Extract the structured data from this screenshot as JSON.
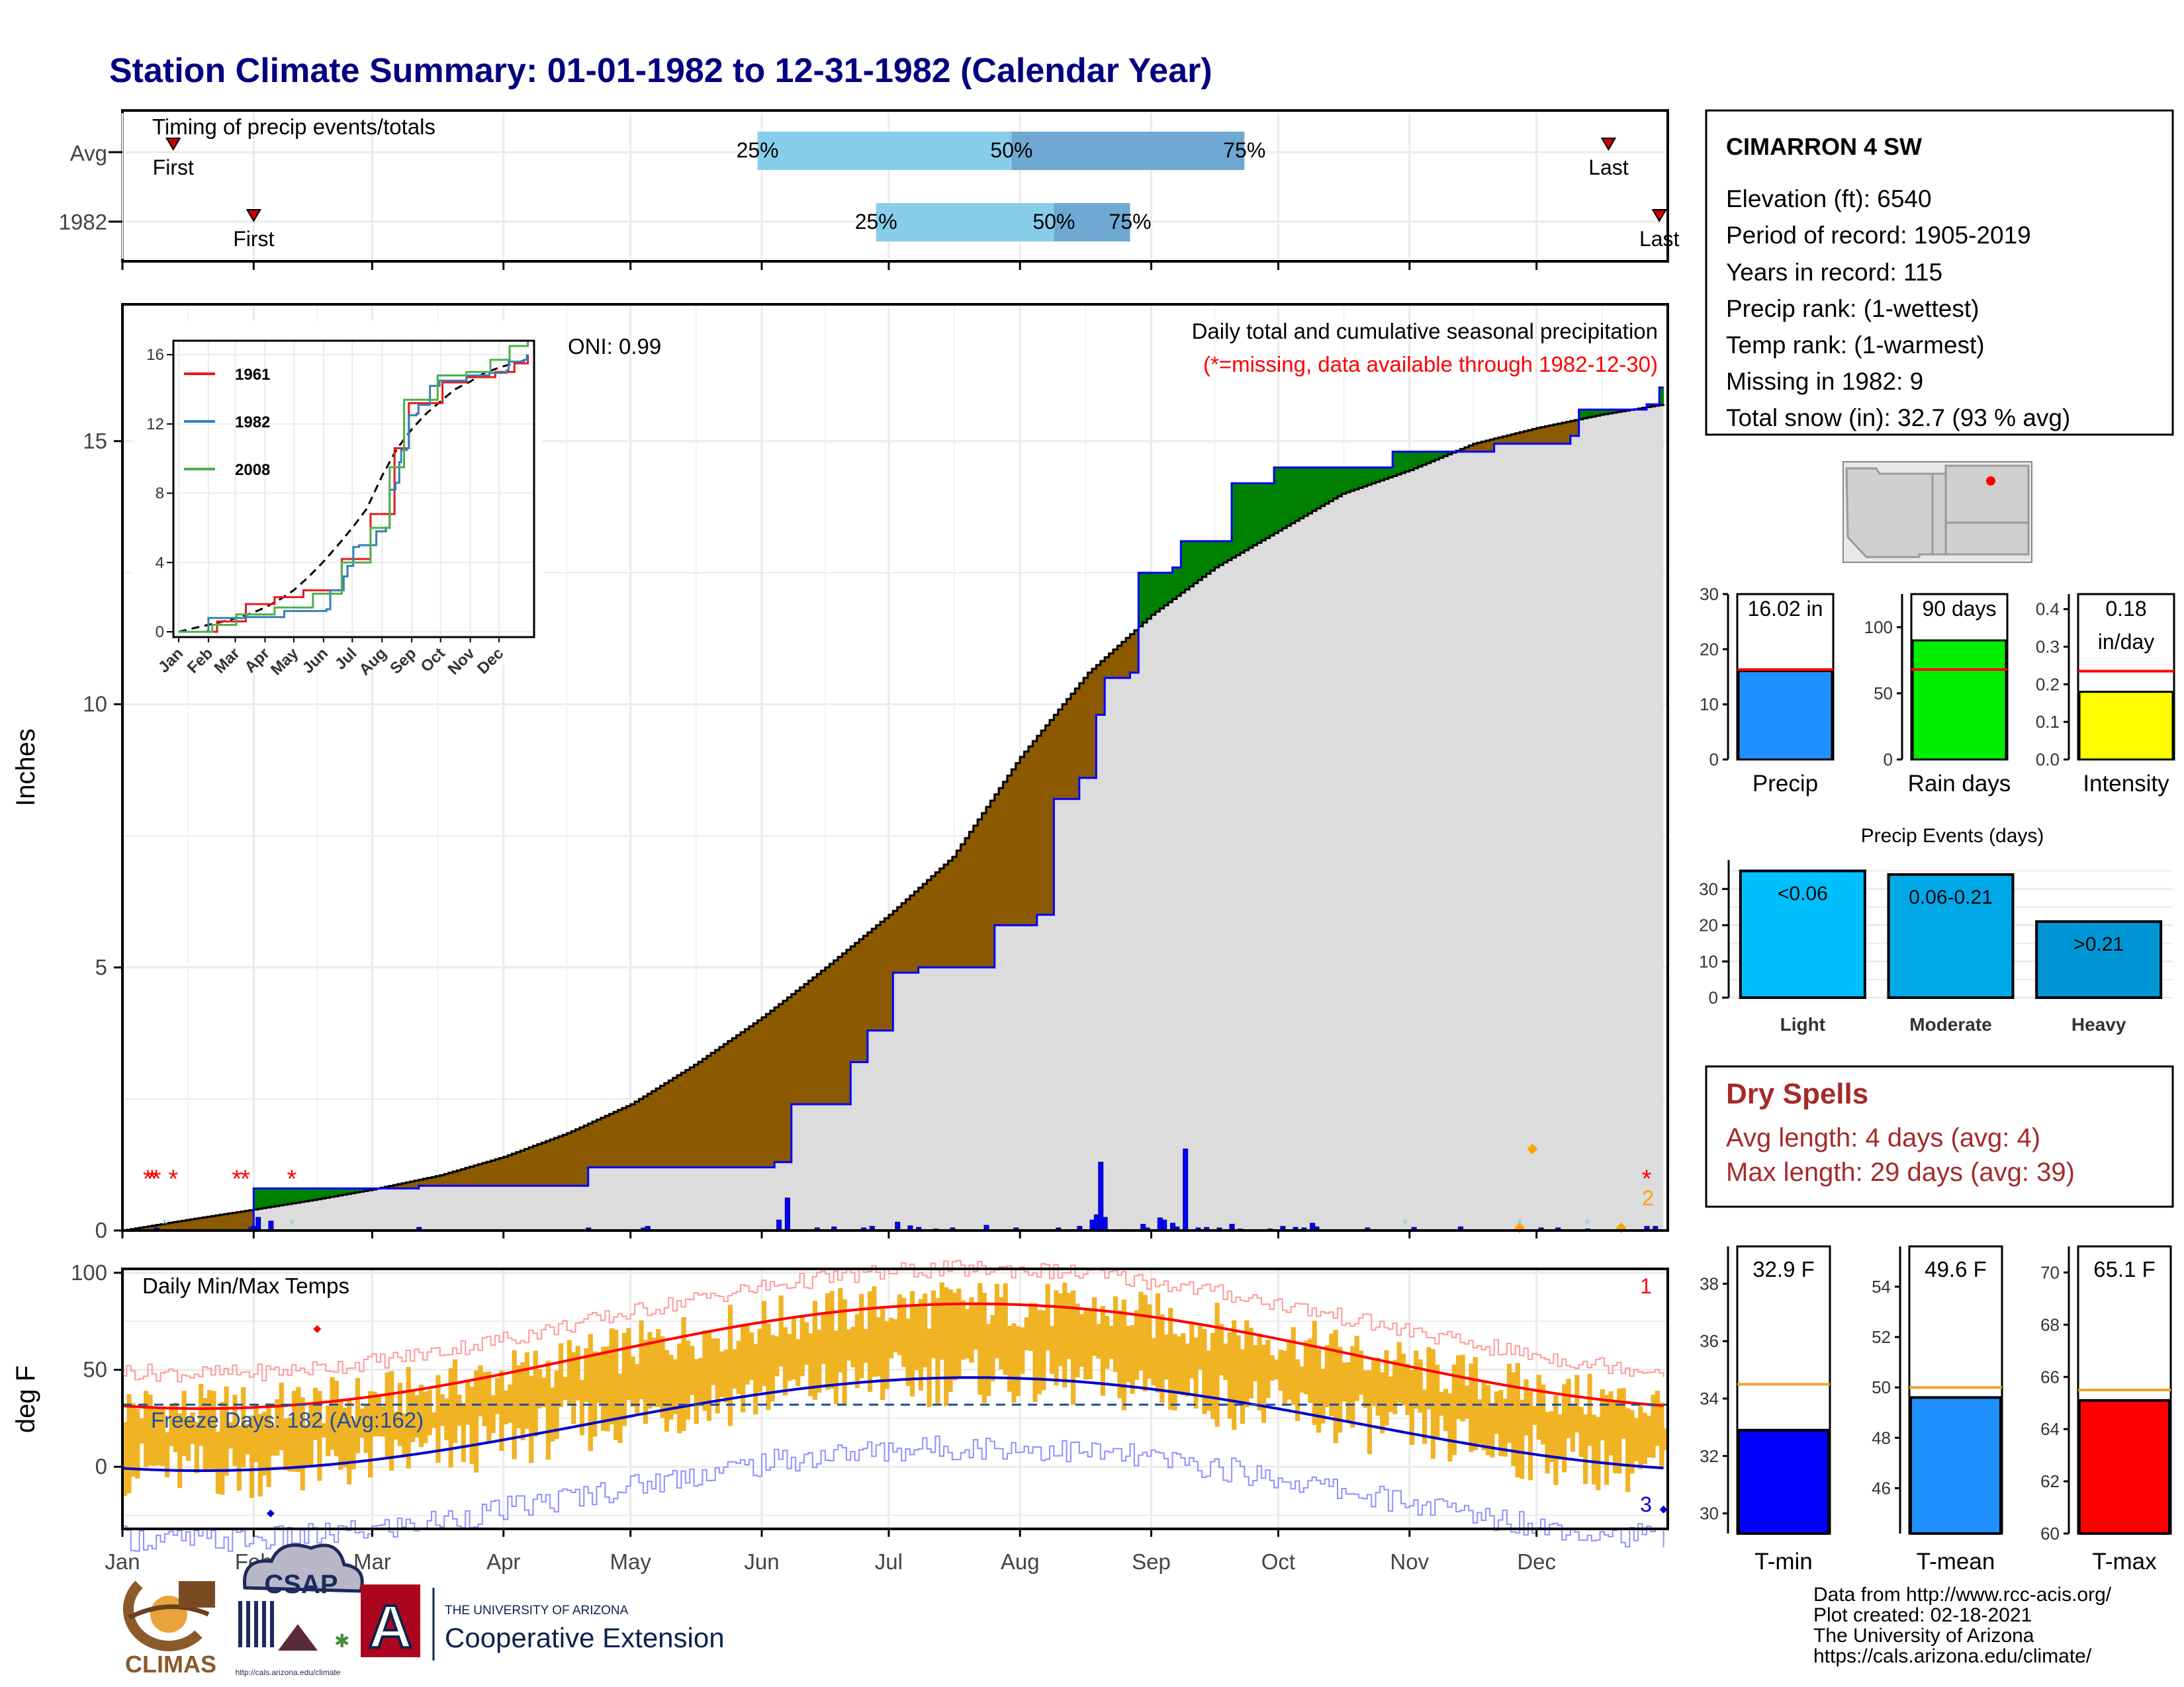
{
  "title": "Station Climate Summary: 01-01-1982 to 12-31-1982 (Calendar Year)",
  "timing": {
    "panel_label": "Timing of precip events/totals",
    "rows": [
      "Avg",
      "1982"
    ],
    "avg": {
      "first_label": "First",
      "last_label": "Last",
      "first_day": 12,
      "last_day": 351,
      "q25": 150,
      "q50": 210,
      "q75": 265
    },
    "y1982": {
      "first_label": "First",
      "last_label": "Last",
      "first_day": 31,
      "last_day": 363,
      "q25": 178,
      "q50": 220,
      "q75": 238
    },
    "pct_labels": [
      "25%",
      "50%",
      "75%"
    ]
  },
  "months": [
    "Jan",
    "Feb",
    "Mar",
    "Apr",
    "May",
    "Jun",
    "Jul",
    "Aug",
    "Sep",
    "Oct",
    "Nov",
    "Dec"
  ],
  "month_start_days": [
    0,
    31,
    59,
    90,
    120,
    151,
    181,
    212,
    243,
    273,
    304,
    334
  ],
  "precip": {
    "ylabel": "Inches",
    "yticks": [
      0,
      5,
      10,
      15
    ],
    "ylim": [
      0,
      17.6
    ],
    "oni": "ONI: 0.99",
    "subtitle": "Daily total and cumulative seasonal precipitation",
    "missing_note": "(*=missing, data available through 1982-12-30)",
    "count_label": "2",
    "avg_cumulative": [
      [
        0,
        0
      ],
      [
        15,
        0.2
      ],
      [
        31,
        0.4
      ],
      [
        45,
        0.58
      ],
      [
        59,
        0.78
      ],
      [
        75,
        1.05
      ],
      [
        90,
        1.4
      ],
      [
        105,
        1.85
      ],
      [
        120,
        2.4
      ],
      [
        135,
        3.15
      ],
      [
        151,
        4.05
      ],
      [
        166,
        5.0
      ],
      [
        181,
        6.0
      ],
      [
        196,
        7.1
      ],
      [
        212,
        9.0
      ],
      [
        228,
        10.6
      ],
      [
        243,
        11.7
      ],
      [
        258,
        12.6
      ],
      [
        273,
        13.3
      ],
      [
        288,
        14.0
      ],
      [
        304,
        14.45
      ],
      [
        319,
        14.95
      ],
      [
        334,
        15.25
      ],
      [
        349,
        15.5
      ],
      [
        364,
        15.7
      ]
    ],
    "obs_cumulative": [
      [
        0,
        0
      ],
      [
        30,
        0.05
      ],
      [
        31,
        0.8
      ],
      [
        33,
        0.8
      ],
      [
        70,
        0.85
      ],
      [
        110,
        1.2
      ],
      [
        154,
        1.3
      ],
      [
        158,
        2.4
      ],
      [
        172,
        3.2
      ],
      [
        176,
        3.8
      ],
      [
        182,
        4.9
      ],
      [
        188,
        5.0
      ],
      [
        206,
        5.8
      ],
      [
        216,
        6.0
      ],
      [
        220,
        8.2
      ],
      [
        226,
        8.6
      ],
      [
        230,
        9.8
      ],
      [
        232,
        10.5
      ],
      [
        238,
        10.6
      ],
      [
        240,
        12.5
      ],
      [
        248,
        12.6
      ],
      [
        250,
        13.1
      ],
      [
        262,
        14.2
      ],
      [
        272,
        14.5
      ],
      [
        300,
        14.8
      ],
      [
        324,
        14.95
      ],
      [
        342,
        15.1
      ],
      [
        344,
        15.6
      ],
      [
        360,
        15.7
      ],
      [
        363,
        16.02
      ]
    ],
    "daily_bars": [
      [
        8,
        0.05
      ],
      [
        31,
        0.08
      ],
      [
        32,
        0.25
      ],
      [
        35,
        0.18
      ],
      [
        70,
        0.06
      ],
      [
        110,
        0.05
      ],
      [
        123,
        0.02
      ],
      [
        123,
        0.05
      ],
      [
        124,
        0.08
      ],
      [
        155,
        0.2
      ],
      [
        157,
        0.62
      ],
      [
        164,
        0.05
      ],
      [
        168,
        0.07
      ],
      [
        175,
        0.05
      ],
      [
        177,
        0.08
      ],
      [
        183,
        0.16
      ],
      [
        186,
        0.09
      ],
      [
        188,
        0.06
      ],
      [
        192,
        0.03
      ],
      [
        196,
        0.05
      ],
      [
        204,
        0.1
      ],
      [
        211,
        0.05
      ],
      [
        221,
        0.05
      ],
      [
        226,
        0.08
      ],
      [
        229,
        0.2
      ],
      [
        230,
        0.3
      ],
      [
        231,
        1.3
      ],
      [
        232,
        0.25
      ],
      [
        237,
        0.02
      ],
      [
        241,
        0.12
      ],
      [
        242,
        0.05
      ],
      [
        245,
        0.24
      ],
      [
        246,
        0.2
      ],
      [
        248,
        0.14
      ],
      [
        249,
        0.07
      ],
      [
        251,
        1.55
      ],
      [
        254,
        0.05
      ],
      [
        256,
        0.06
      ],
      [
        259,
        0.05
      ],
      [
        262,
        0.12
      ],
      [
        264,
        0.03
      ],
      [
        271,
        0.03
      ],
      [
        274,
        0.08
      ],
      [
        277,
        0.06
      ],
      [
        279,
        0.05
      ],
      [
        281,
        0.14
      ],
      [
        282,
        0.07
      ],
      [
        294,
        0.05
      ],
      [
        305,
        0.06
      ],
      [
        316,
        0.07
      ],
      [
        335,
        0.05
      ],
      [
        339,
        0.05
      ],
      [
        346,
        0.03
      ],
      [
        360,
        0.08
      ],
      [
        362,
        0.08
      ]
    ],
    "missing_days": [
      6,
      7,
      8,
      12,
      27,
      29,
      40,
      360
    ],
    "legend_note_markers": [
      [
        330,
        0.05
      ],
      [
        354,
        0.05
      ],
      [
        333,
        1.55
      ]
    ]
  },
  "temps": {
    "ylabel": "deg F",
    "panel_label": "Daily Min/Max Temps",
    "yticks": [
      0,
      50,
      100
    ],
    "ylim": [
      -32,
      102
    ],
    "freeze_label": "Freeze Days: 182 (Avg:162)",
    "freeze_line": 32,
    "count_top": "1",
    "count_bottom": "3"
  },
  "inset": {
    "yticks": [
      "16",
      "12",
      "8",
      "4",
      "0"
    ],
    "months": [
      "Jan",
      "Feb",
      "Mar",
      "Apr",
      "May",
      "Jun",
      "Jul",
      "Aug",
      "Sep",
      "Oct",
      "Nov",
      "Dec"
    ],
    "series": [
      {
        "name": "1961",
        "color": "#e41a1c"
      },
      {
        "name": "1982",
        "color": "#377eb8"
      },
      {
        "name": "2008",
        "color": "#4daf4a"
      }
    ]
  },
  "station": {
    "name": "CIMARRON 4 SW",
    "lines": [
      "Elevation (ft): 6540",
      "Period of record: 1905-2019",
      "Years in record: 115",
      "Precip rank:  (1-wettest)",
      "Temp rank:  (1-warmest)",
      "Missing in 1982: 9",
      "Total snow (in): 32.7 (93 % avg)"
    ]
  },
  "small_bars": {
    "precip": {
      "label": "Precip",
      "value_text": "16.02 in",
      "value": 16.02,
      "avg": 16.3,
      "yticks": [
        "0",
        "10",
        "20",
        "30"
      ],
      "ymax": 30,
      "color": "#1e90ff"
    },
    "raindays": {
      "label": "Rain days",
      "value_text": "90 days",
      "value": 90,
      "avg": 68,
      "yticks": [
        "0",
        "50",
        "100"
      ],
      "ymax": 125,
      "color": "#00ee00"
    },
    "intensity": {
      "label": "Intensity",
      "value_text": "0.18",
      "value_text2": "in/day",
      "value": 0.18,
      "avg": 0.235,
      "yticks": [
        "0.0",
        "0.1",
        "0.2",
        "0.3",
        "0.4"
      ],
      "ymax": 0.44,
      "color": "#ffff00"
    }
  },
  "events": {
    "title": "Precip Events (days)",
    "yticks": [
      "0",
      "10",
      "20",
      "30"
    ],
    "categories": [
      "Light",
      "Moderate",
      "Heavy"
    ],
    "bar_labels": [
      "<0.06",
      "0.06-0.21",
      ">0.21"
    ],
    "values": [
      35,
      34,
      21
    ],
    "colors": [
      "#00bfff",
      "#00a8e8",
      "#0096d6"
    ]
  },
  "dry_spells": {
    "title": "Dry Spells",
    "avg_length": "Avg length: 4 days (avg: 4)",
    "max_length": "Max length: 29 days (avg: 39)"
  },
  "temp_bars": {
    "tmin": {
      "label": "T-min",
      "value_text": "32.9 F",
      "value": 32.9,
      "avg": 34.5,
      "ymin": 29.3,
      "ymax": 39.3,
      "yticks": [
        "30",
        "32",
        "34",
        "36",
        "38"
      ],
      "color": "#0000ff"
    },
    "tmean": {
      "label": "T-mean",
      "value_text": "49.6 F",
      "value": 49.6,
      "avg": 50.0,
      "ymin": 44.2,
      "ymax": 55.6,
      "yticks": [
        "46",
        "48",
        "50",
        "52",
        "54"
      ],
      "color": "#1e90ff"
    },
    "tmax": {
      "label": "T-max",
      "value_text": "65.1 F",
      "value": 65.1,
      "avg": 65.5,
      "ymin": 60.0,
      "ymax": 71.0,
      "yticks": [
        "60",
        "62",
        "64",
        "66",
        "68",
        "70"
      ],
      "color": "#ff0000"
    }
  },
  "footer": {
    "lines": [
      "Data from http://www.rcc-acis.org/",
      "Plot created: 02-18-2021",
      "The University of Arizona",
      "https://cals.arizona.edu/climate/"
    ],
    "logos": {
      "climas": "CLIMAS",
      "csap": "CSAP",
      "csap_url": "http://cals.arizona.edu/climate",
      "ua_top": "THE UNIVERSITY OF ARIZONA",
      "ua_main": "Cooperative Extension",
      "ua_letter": "A"
    }
  }
}
